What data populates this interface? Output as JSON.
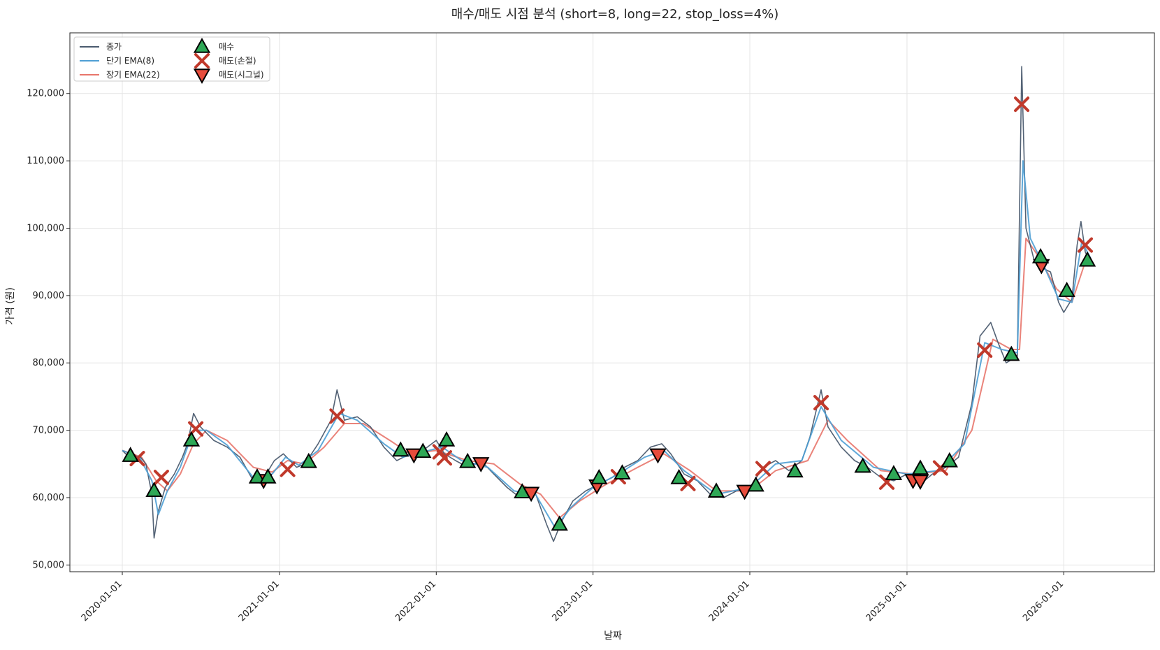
{
  "chart_data": {
    "type": "line",
    "title": "매수/매도 시점 분석 (short=8, long=22, stop_loss=4%)",
    "xlabel": "날짜",
    "ylabel": "가격 (원)",
    "xlim": [
      "2019-09-01",
      "2026-07-31"
    ],
    "ylim": [
      49000,
      129000
    ],
    "x_ticks": [
      "2020-01-01",
      "2021-01-01",
      "2022-01-01",
      "2023-01-01",
      "2024-01-01",
      "2025-01-01",
      "2026-01-01"
    ],
    "y_ticks": [
      50000,
      60000,
      70000,
      80000,
      90000,
      100000,
      110000,
      120000
    ],
    "y_tick_labels": [
      "50,000",
      "60,000",
      "70,000",
      "80,000",
      "90,000",
      "100,000",
      "110,000",
      "120,000"
    ],
    "grid": true,
    "legend_position": "top-left",
    "colors": {
      "close": "#4a5a6e",
      "ema_short": "#4e9fd4",
      "ema_long": "#e8766b",
      "buy": "#2ea856",
      "sell_stop": "#c0392b",
      "sell_signal": "#e74c3c"
    },
    "series": [
      {
        "name": "종가",
        "key": "close",
        "points": [
          [
            "2020-01-01",
            67000
          ],
          [
            "2020-01-20",
            65800
          ],
          [
            "2020-02-10",
            66200
          ],
          [
            "2020-02-25",
            65000
          ],
          [
            "2020-03-10",
            60500
          ],
          [
            "2020-03-15",
            54000
          ],
          [
            "2020-03-25",
            58000
          ],
          [
            "2020-04-10",
            61500
          ],
          [
            "2020-05-01",
            63500
          ],
          [
            "2020-05-20",
            66000
          ],
          [
            "2020-06-01",
            68000
          ],
          [
            "2020-06-15",
            72500
          ],
          [
            "2020-07-01",
            70500
          ],
          [
            "2020-08-01",
            68500
          ],
          [
            "2020-09-01",
            67500
          ],
          [
            "2020-10-01",
            66000
          ],
          [
            "2020-11-01",
            62500
          ],
          [
            "2020-12-01",
            63500
          ],
          [
            "2020-12-20",
            65500
          ],
          [
            "2021-01-10",
            66500
          ],
          [
            "2021-02-10",
            64500
          ],
          [
            "2021-03-01",
            65000
          ],
          [
            "2021-04-01",
            68000
          ],
          [
            "2021-05-01",
            71500
          ],
          [
            "2021-05-15",
            76000
          ],
          [
            "2021-06-01",
            71500
          ],
          [
            "2021-07-01",
            72000
          ],
          [
            "2021-08-01",
            70500
          ],
          [
            "2021-09-01",
            67500
          ],
          [
            "2021-10-01",
            65500
          ],
          [
            "2021-11-01",
            66500
          ],
          [
            "2021-12-01",
            67000
          ],
          [
            "2022-01-01",
            68500
          ],
          [
            "2022-01-20",
            66500
          ],
          [
            "2022-02-15",
            65500
          ],
          [
            "2022-03-15",
            64500
          ],
          [
            "2022-04-15",
            65500
          ],
          [
            "2022-05-15",
            63500
          ],
          [
            "2022-06-15",
            61500
          ],
          [
            "2022-07-15",
            60000
          ],
          [
            "2022-08-15",
            61500
          ],
          [
            "2022-09-15",
            56000
          ],
          [
            "2022-10-01",
            53500
          ],
          [
            "2022-10-20",
            56500
          ],
          [
            "2022-11-15",
            59500
          ],
          [
            "2022-12-15",
            61000
          ],
          [
            "2023-01-15",
            62000
          ],
          [
            "2023-02-15",
            63000
          ],
          [
            "2023-03-15",
            64500
          ],
          [
            "2023-04-15",
            65500
          ],
          [
            "2023-05-15",
            67500
          ],
          [
            "2023-06-10",
            68000
          ],
          [
            "2023-07-01",
            66500
          ],
          [
            "2023-08-01",
            63500
          ],
          [
            "2023-09-01",
            62500
          ],
          [
            "2023-10-01",
            60500
          ],
          [
            "2023-11-01",
            60000
          ],
          [
            "2023-12-01",
            61000
          ],
          [
            "2024-01-01",
            61500
          ],
          [
            "2024-02-01",
            64500
          ],
          [
            "2024-03-01",
            65500
          ],
          [
            "2024-04-01",
            64000
          ],
          [
            "2024-05-01",
            65500
          ],
          [
            "2024-05-20",
            69000
          ],
          [
            "2024-06-15",
            76000
          ],
          [
            "2024-07-01",
            70500
          ],
          [
            "2024-08-01",
            67500
          ],
          [
            "2024-09-01",
            65500
          ],
          [
            "2024-10-01",
            64500
          ],
          [
            "2024-11-01",
            63000
          ],
          [
            "2024-12-01",
            62500
          ],
          [
            "2025-01-01",
            63500
          ],
          [
            "2025-02-01",
            62000
          ],
          [
            "2025-03-01",
            63500
          ],
          [
            "2025-04-01",
            64500
          ],
          [
            "2025-05-01",
            66000
          ],
          [
            "2025-06-01",
            74000
          ],
          [
            "2025-06-20",
            84000
          ],
          [
            "2025-07-15",
            86000
          ],
          [
            "2025-08-01",
            83000
          ],
          [
            "2025-08-20",
            80000
          ],
          [
            "2025-09-15",
            81000
          ],
          [
            "2025-09-25",
            124000
          ],
          [
            "2025-10-05",
            100000
          ],
          [
            "2025-10-25",
            95000
          ],
          [
            "2025-11-15",
            94000
          ],
          [
            "2025-12-01",
            93500
          ],
          [
            "2025-12-20",
            89000
          ],
          [
            "2026-01-01",
            87500
          ],
          [
            "2026-01-20",
            89500
          ],
          [
            "2026-02-01",
            97500
          ],
          [
            "2026-02-10",
            101000
          ],
          [
            "2026-02-20",
            96500
          ],
          [
            "2026-03-05",
            94500
          ]
        ]
      },
      {
        "name": "단기 EMA(8)",
        "key": "ema_short",
        "points": [
          [
            "2020-01-01",
            67000
          ],
          [
            "2020-02-10",
            66000
          ],
          [
            "2020-03-10",
            62500
          ],
          [
            "2020-03-25",
            57500
          ],
          [
            "2020-04-15",
            61000
          ],
          [
            "2020-05-15",
            64500
          ],
          [
            "2020-06-15",
            70000
          ],
          [
            "2020-07-15",
            70000
          ],
          [
            "2020-09-01",
            67800
          ],
          [
            "2020-11-01",
            63000
          ],
          [
            "2020-12-15",
            63500
          ],
          [
            "2021-01-15",
            66000
          ],
          [
            "2021-02-15",
            64800
          ],
          [
            "2021-04-01",
            67000
          ],
          [
            "2021-05-20",
            72500
          ],
          [
            "2021-07-01",
            71500
          ],
          [
            "2021-09-01",
            68000
          ],
          [
            "2021-10-15",
            66000
          ],
          [
            "2021-12-15",
            67000
          ],
          [
            "2022-01-15",
            67500
          ],
          [
            "2022-03-01",
            65500
          ],
          [
            "2022-05-01",
            64500
          ],
          [
            "2022-07-01",
            61000
          ],
          [
            "2022-08-20",
            60500
          ],
          [
            "2022-10-05",
            55500
          ],
          [
            "2022-11-10",
            58500
          ],
          [
            "2023-01-01",
            61500
          ],
          [
            "2023-03-01",
            63500
          ],
          [
            "2023-05-01",
            66000
          ],
          [
            "2023-06-15",
            67000
          ],
          [
            "2023-08-01",
            64000
          ],
          [
            "2023-10-15",
            60500
          ],
          [
            "2024-01-01",
            61500
          ],
          [
            "2024-03-01",
            65000
          ],
          [
            "2024-05-01",
            65500
          ],
          [
            "2024-06-15",
            73500
          ],
          [
            "2024-08-01",
            68500
          ],
          [
            "2024-10-15",
            64500
          ],
          [
            "2025-01-01",
            63500
          ],
          [
            "2025-03-15",
            64000
          ],
          [
            "2025-05-15",
            68000
          ],
          [
            "2025-07-01",
            83000
          ],
          [
            "2025-08-10",
            82000
          ],
          [
            "2025-09-15",
            81500
          ],
          [
            "2025-09-28",
            110000
          ],
          [
            "2025-10-15",
            98500
          ],
          [
            "2025-11-15",
            94500
          ],
          [
            "2025-12-20",
            89500
          ],
          [
            "2026-01-20",
            89000
          ],
          [
            "2026-02-12",
            98000
          ],
          [
            "2026-03-05",
            95500
          ]
        ]
      },
      {
        "name": "장기 EMA(22)",
        "key": "ema_long",
        "points": [
          [
            "2020-01-01",
            67000
          ],
          [
            "2020-02-15",
            66000
          ],
          [
            "2020-03-20",
            62500
          ],
          [
            "2020-04-15",
            61000
          ],
          [
            "2020-05-15",
            63500
          ],
          [
            "2020-06-15",
            68000
          ],
          [
            "2020-07-15",
            70000
          ],
          [
            "2020-09-01",
            68500
          ],
          [
            "2020-11-01",
            64500
          ],
          [
            "2020-12-15",
            63800
          ],
          [
            "2021-01-20",
            65500
          ],
          [
            "2021-03-01",
            65000
          ],
          [
            "2021-04-15",
            67500
          ],
          [
            "2021-06-01",
            71000
          ],
          [
            "2021-07-15",
            71000
          ],
          [
            "2021-09-15",
            68500
          ],
          [
            "2021-11-01",
            66500
          ],
          [
            "2022-01-01",
            67000
          ],
          [
            "2022-03-15",
            65500
          ],
          [
            "2022-05-15",
            65000
          ],
          [
            "2022-07-15",
            62000
          ],
          [
            "2022-09-01",
            60500
          ],
          [
            "2022-10-15",
            57000
          ],
          [
            "2022-12-01",
            59500
          ],
          [
            "2023-02-01",
            62000
          ],
          [
            "2023-04-15",
            64500
          ],
          [
            "2023-06-15",
            66500
          ],
          [
            "2023-08-15",
            64000
          ],
          [
            "2023-10-15",
            61000
          ],
          [
            "2024-01-01",
            61000
          ],
          [
            "2024-03-01",
            64000
          ],
          [
            "2024-05-15",
            65500
          ],
          [
            "2024-07-01",
            71500
          ],
          [
            "2024-08-15",
            68500
          ],
          [
            "2024-11-01",
            64000
          ],
          [
            "2025-01-15",
            63500
          ],
          [
            "2025-04-01",
            64000
          ],
          [
            "2025-06-01",
            70000
          ],
          [
            "2025-07-20",
            83500
          ],
          [
            "2025-09-01",
            82000
          ],
          [
            "2025-09-20",
            82000
          ],
          [
            "2025-10-05",
            98500
          ],
          [
            "2025-11-01",
            96000
          ],
          [
            "2025-12-15",
            91000
          ],
          [
            "2026-01-20",
            89000
          ],
          [
            "2026-02-20",
            95000
          ],
          [
            "2026-03-05",
            95500
          ]
        ]
      }
    ],
    "markers": [
      {
        "name": "매수",
        "key": "buy",
        "shape": "triangle-up",
        "points": [
          [
            "2020-01-20",
            66200
          ],
          [
            "2020-03-15",
            61000
          ],
          [
            "2020-06-10",
            68500
          ],
          [
            "2020-11-10",
            63000
          ],
          [
            "2020-12-05",
            63000
          ],
          [
            "2021-03-10",
            65300
          ],
          [
            "2021-10-10",
            67000
          ],
          [
            "2021-12-01",
            66800
          ],
          [
            "2022-01-25",
            68500
          ],
          [
            "2022-03-15",
            65300
          ],
          [
            "2022-07-20",
            60800
          ],
          [
            "2022-10-15",
            56000
          ],
          [
            "2023-01-15",
            62900
          ],
          [
            "2023-03-10",
            63600
          ],
          [
            "2023-07-20",
            62900
          ],
          [
            "2023-10-15",
            60900
          ],
          [
            "2024-01-15",
            61800
          ],
          [
            "2024-04-15",
            63900
          ],
          [
            "2024-09-20",
            64600
          ],
          [
            "2024-12-01",
            63500
          ],
          [
            "2025-02-01",
            64300
          ],
          [
            "2025-04-10",
            65400
          ],
          [
            "2025-09-01",
            81200
          ],
          [
            "2025-11-08",
            95700
          ],
          [
            "2026-01-08",
            90700
          ],
          [
            "2026-02-25",
            95200
          ]
        ]
      },
      {
        "name": "매도(손절)",
        "key": "sell_stop",
        "points": [
          [
            "2020-02-05",
            65800
          ],
          [
            "2020-04-01",
            63000
          ],
          [
            "2020-06-20",
            70200
          ],
          [
            "2021-01-20",
            64200
          ],
          [
            "2021-05-15",
            72100
          ],
          [
            "2022-01-10",
            66800
          ],
          [
            "2022-01-20",
            65900
          ],
          [
            "2023-03-01",
            63100
          ],
          [
            "2023-08-10",
            62100
          ],
          [
            "2024-02-01",
            64300
          ],
          [
            "2024-06-15",
            74100
          ],
          [
            "2024-11-15",
            62300
          ],
          [
            "2025-03-20",
            64400
          ],
          [
            "2025-07-01",
            81900
          ],
          [
            "2025-09-25",
            118400
          ],
          [
            "2026-02-20",
            97500
          ]
        ],
        "shape": "x"
      },
      {
        "name": "매도(시그널)",
        "key": "sell_signal",
        "shape": "triangle-down",
        "points": [
          [
            "2020-11-25",
            62600
          ],
          [
            "2021-11-10",
            66400
          ],
          [
            "2022-04-15",
            65100
          ],
          [
            "2022-08-10",
            60700
          ],
          [
            "2023-01-10",
            61800
          ],
          [
            "2023-06-01",
            66400
          ],
          [
            "2023-12-20",
            61000
          ],
          [
            "2025-01-15",
            62600
          ],
          [
            "2025-02-01",
            62500
          ],
          [
            "2025-11-10",
            94500
          ]
        ]
      }
    ]
  }
}
